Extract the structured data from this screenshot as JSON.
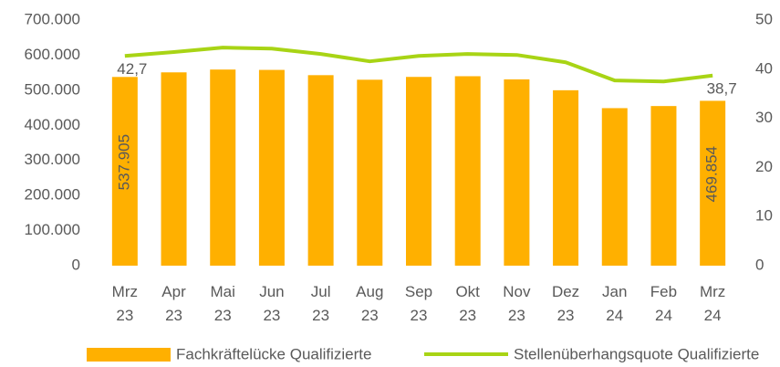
{
  "chart_data": {
    "type": "bar-line",
    "categories": [
      "Mrz 23",
      "Apr 23",
      "Mai 23",
      "Jun 23",
      "Jul 23",
      "Aug 23",
      "Sep 23",
      "Okt 23",
      "Nov 23",
      "Dez 23",
      "Jan 24",
      "Feb 24",
      "Mrz 24"
    ],
    "series": [
      {
        "name": "Fachkräftelücke Qualifizierte",
        "color": "#ffb000",
        "kind": "bar",
        "values": [
          537905,
          551000,
          559000,
          558000,
          543000,
          530000,
          538000,
          540000,
          531000,
          500000,
          449000,
          455000,
          469854
        ],
        "value_labels": [
          "537.905",
          null,
          null,
          null,
          null,
          null,
          null,
          null,
          null,
          null,
          null,
          null,
          "469.854"
        ]
      },
      {
        "name": "Stellenüberhangsquote Qualifizierte",
        "color": "#a8d415",
        "kind": "line",
        "axis": "y2",
        "values": [
          42.7,
          43.5,
          44.4,
          44.2,
          43.1,
          41.6,
          42.7,
          43.1,
          42.9,
          41.4,
          37.7,
          37.5,
          38.7
        ],
        "value_labels": [
          "42,7",
          null,
          null,
          null,
          null,
          null,
          null,
          null,
          null,
          null,
          null,
          null,
          "38,7"
        ]
      }
    ],
    "ylim": [
      0,
      700000
    ],
    "yticks": [
      {
        "value": 0,
        "label": "0"
      },
      {
        "value": 100000,
        "label": "100.000"
      },
      {
        "value": 200000,
        "label": "200.000"
      },
      {
        "value": 300000,
        "label": "300.000"
      },
      {
        "value": 400000,
        "label": "400.000"
      },
      {
        "value": 500000,
        "label": "500.000"
      },
      {
        "value": 600000,
        "label": "600.000"
      },
      {
        "value": 700000,
        "label": "700.000"
      }
    ],
    "y2lim": [
      0,
      50
    ],
    "y2ticks": [
      0,
      10,
      20,
      30,
      40,
      50
    ],
    "grid": false,
    "legend": "bottom"
  }
}
